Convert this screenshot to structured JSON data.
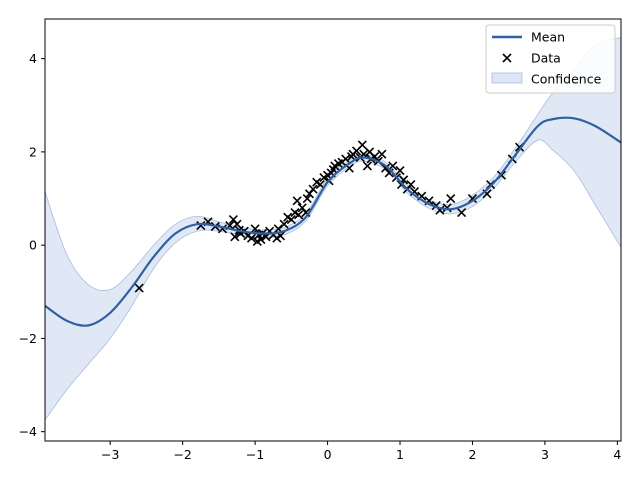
{
  "chart_data": {
    "type": "line",
    "title": "",
    "xlabel": "",
    "ylabel": "",
    "xlim": [
      -3.9,
      4.05
    ],
    "ylim": [
      -4.2,
      4.85
    ],
    "grid": false,
    "legend_placement": "top-right",
    "x_ticks": [
      -3,
      -2,
      -1,
      0,
      1,
      2,
      3,
      4
    ],
    "y_ticks": [
      -4,
      -2,
      0,
      2,
      4
    ],
    "x_tick_labels": [
      "−3",
      "−2",
      "−1",
      "0",
      "1",
      "2",
      "3",
      "4"
    ],
    "y_tick_labels": [
      "−4",
      "−2",
      "0",
      "2",
      "4"
    ],
    "legend": [
      {
        "key": "mean",
        "label": "Mean"
      },
      {
        "key": "data",
        "label": "Data"
      },
      {
        "key": "confidence",
        "label": "Confidence"
      }
    ],
    "colors": {
      "mean": "#3060a0",
      "band": "#c6d5ec",
      "band_edge": "#a8bde0",
      "data": "#000000"
    },
    "mean": {
      "x": [
        -3.9,
        -3.6,
        -3.3,
        -3.0,
        -2.7,
        -2.4,
        -2.1,
        -1.8,
        -1.5,
        -1.2,
        -0.9,
        -0.6,
        -0.3,
        0.0,
        0.3,
        0.5,
        0.8,
        1.1,
        1.4,
        1.7,
        2.0,
        2.3,
        2.6,
        2.9,
        3.1,
        3.4,
        3.7,
        4.05
      ],
      "y": [
        -1.3,
        -1.62,
        -1.72,
        -1.45,
        -0.9,
        -0.25,
        0.25,
        0.45,
        0.4,
        0.3,
        0.25,
        0.3,
        0.6,
        1.35,
        1.75,
        1.88,
        1.7,
        1.2,
        0.88,
        0.77,
        0.95,
        1.35,
        1.95,
        2.55,
        2.7,
        2.72,
        2.55,
        2.2
      ],
      "upper": [
        1.15,
        -0.2,
        -0.85,
        -0.95,
        -0.55,
        0.0,
        0.45,
        0.62,
        0.5,
        0.38,
        0.33,
        0.38,
        0.68,
        1.43,
        1.82,
        1.95,
        1.78,
        1.28,
        0.97,
        0.87,
        1.07,
        1.47,
        2.1,
        2.8,
        3.25,
        3.75,
        4.3,
        4.45
      ],
      "lower": [
        -3.75,
        -3.1,
        -2.55,
        -2.0,
        -1.3,
        -0.5,
        0.05,
        0.3,
        0.3,
        0.22,
        0.17,
        0.22,
        0.52,
        1.27,
        1.68,
        1.8,
        1.62,
        1.12,
        0.79,
        0.67,
        0.83,
        1.23,
        1.8,
        2.25,
        2.05,
        1.6,
        0.85,
        -0.05
      ]
    },
    "data_points": {
      "x": [
        -2.6,
        -1.75,
        -1.65,
        -1.55,
        -1.45,
        -1.35,
        -1.3,
        -1.28,
        -1.25,
        -1.22,
        -1.2,
        -1.15,
        -1.1,
        -1.05,
        -1.0,
        -0.97,
        -0.95,
        -0.92,
        -0.9,
        -0.85,
        -0.8,
        -0.75,
        -0.7,
        -0.68,
        -0.65,
        -0.6,
        -0.55,
        -0.5,
        -0.45,
        -0.42,
        -0.4,
        -0.35,
        -0.3,
        -0.28,
        -0.25,
        -0.2,
        -0.15,
        -0.1,
        -0.05,
        0.0,
        0.02,
        0.05,
        0.08,
        0.1,
        0.15,
        0.2,
        0.25,
        0.3,
        0.33,
        0.35,
        0.4,
        0.45,
        0.48,
        0.5,
        0.55,
        0.58,
        0.6,
        0.65,
        0.7,
        0.75,
        0.8,
        0.85,
        0.9,
        0.95,
        1.0,
        1.02,
        1.05,
        1.1,
        1.15,
        1.2,
        1.3,
        1.4,
        1.5,
        1.55,
        1.65,
        1.7,
        1.85,
        2.0,
        2.2,
        2.25,
        2.4,
        2.55,
        2.65
      ],
      "y": [
        -0.92,
        0.42,
        0.5,
        0.4,
        0.35,
        0.42,
        0.55,
        0.18,
        0.45,
        0.32,
        0.25,
        0.3,
        0.2,
        0.15,
        0.35,
        0.08,
        0.22,
        0.12,
        0.25,
        0.18,
        0.3,
        0.22,
        0.15,
        0.35,
        0.2,
        0.45,
        0.6,
        0.55,
        0.7,
        0.95,
        0.65,
        0.8,
        0.7,
        1.0,
        1.1,
        1.2,
        1.35,
        1.3,
        1.45,
        1.5,
        1.38,
        1.55,
        1.62,
        1.7,
        1.75,
        1.78,
        1.85,
        1.65,
        1.9,
        1.95,
        2.02,
        1.88,
        2.15,
        1.95,
        1.7,
        2.0,
        1.85,
        1.9,
        1.8,
        1.95,
        1.65,
        1.55,
        1.7,
        1.45,
        1.6,
        1.3,
        1.4,
        1.2,
        1.3,
        1.15,
        1.05,
        0.95,
        0.85,
        0.75,
        0.8,
        1.0,
        0.7,
        1.0,
        1.1,
        1.3,
        1.5,
        1.85,
        2.1
      ]
    }
  }
}
